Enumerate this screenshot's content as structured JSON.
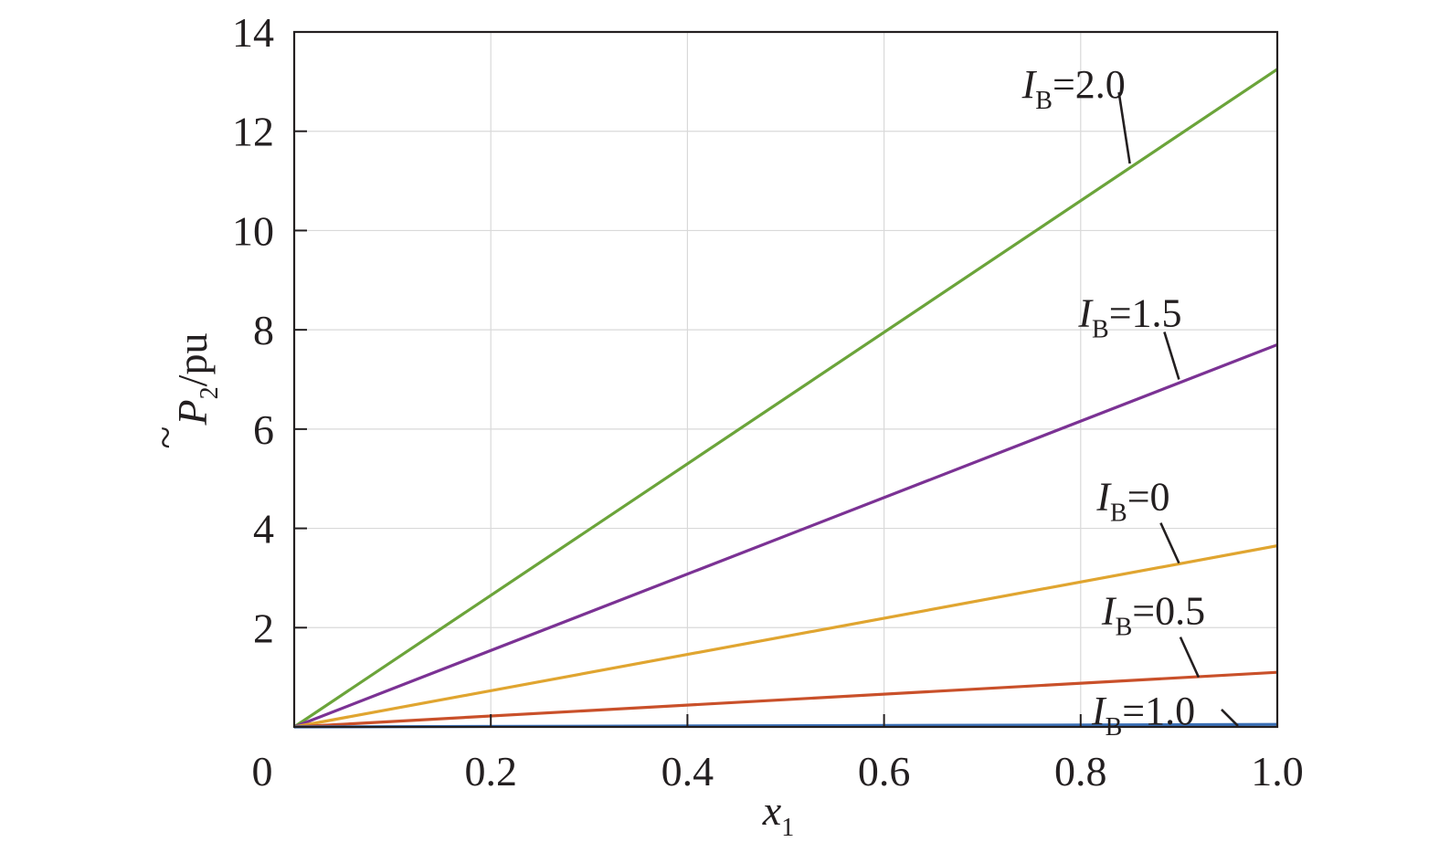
{
  "chart_data": {
    "type": "line",
    "title": "",
    "xlabel": {
      "base": "x",
      "sub": "1"
    },
    "ylabel": {
      "base": "P",
      "sub": "2",
      "accent": "~",
      "unit": "/pu"
    },
    "xlim": [
      0,
      1.0
    ],
    "ylim": [
      0,
      14
    ],
    "grid": true,
    "x_ticks": [
      0,
      0.2,
      0.4,
      0.6,
      0.8,
      1.0
    ],
    "x_tick_labels": [
      "0",
      "0.2",
      "0.4",
      "0.6",
      "0.8",
      "1.0"
    ],
    "y_ticks": [
      2,
      4,
      6,
      8,
      10,
      12,
      14
    ],
    "y_tick_labels": [
      "2",
      "4",
      "6",
      "8",
      "10",
      "12",
      "14"
    ],
    "series": [
      {
        "label_base": "I",
        "label_sub": "B",
        "label_value": "=2.0",
        "color": "#6ba43a",
        "x": [
          0,
          1.0
        ],
        "y": [
          0,
          13.25
        ],
        "label_anchor": [
          0.85,
          11.35
        ]
      },
      {
        "label_base": "I",
        "label_sub": "B",
        "label_value": "=1.5",
        "color": "#7b3294",
        "x": [
          0,
          1.0
        ],
        "y": [
          0,
          7.7
        ],
        "label_anchor": [
          0.9,
          7.0
        ]
      },
      {
        "label_base": "I",
        "label_sub": "B",
        "label_value": "=0",
        "color": "#e0a530",
        "x": [
          0,
          1.0
        ],
        "y": [
          0,
          3.65
        ],
        "label_anchor": [
          0.9,
          3.3
        ]
      },
      {
        "label_base": "I",
        "label_sub": "B",
        "label_value": "=0.5",
        "color": "#c9502a",
        "x": [
          0,
          1.0
        ],
        "y": [
          0,
          1.1
        ],
        "label_anchor": [
          0.92,
          1.0
        ]
      },
      {
        "label_base": "I",
        "label_sub": "B",
        "label_value": "=1.0",
        "color": "#3a6fb5",
        "x": [
          0,
          1.0
        ],
        "y": [
          0,
          0.05
        ],
        "label_anchor": [
          0.96,
          0.02
        ]
      }
    ]
  }
}
